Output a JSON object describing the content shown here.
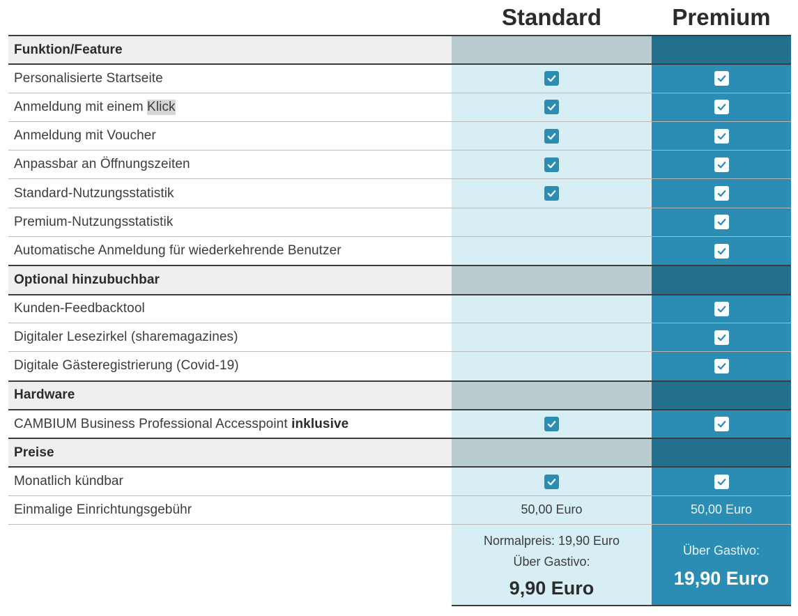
{
  "plans": {
    "standard": "Standard",
    "premium": "Premium"
  },
  "rows": [
    {
      "type": "section",
      "label": "Funktion/Feature"
    },
    {
      "type": "feature",
      "label": "Personalisierte Startseite",
      "std": true,
      "prem": true
    },
    {
      "type": "feature",
      "label_pre": "Anmeldung mit einem ",
      "label_highlight": "Klick",
      "std": true,
      "prem": true
    },
    {
      "type": "feature",
      "label": "Anmeldung mit Voucher",
      "std": true,
      "prem": true
    },
    {
      "type": "feature",
      "label": "Anpassbar an Öffnungszeiten",
      "std": true,
      "prem": true
    },
    {
      "type": "feature",
      "label": "Standard-Nutzungsstatistik",
      "std": true,
      "prem": true
    },
    {
      "type": "feature",
      "label": "Premium-Nutzungsstatistik",
      "std": false,
      "prem": true
    },
    {
      "type": "feature",
      "label": "Automatische Anmeldung für wiederkehrende Benutzer",
      "std": false,
      "prem": true
    },
    {
      "type": "section",
      "label": "Optional hinzubuchbar"
    },
    {
      "type": "feature",
      "label": "Kunden-Feedbacktool",
      "std": false,
      "prem": true
    },
    {
      "type": "feature",
      "label": "Digitaler Lesezirkel (sharemagazines)",
      "std": false,
      "prem": true
    },
    {
      "type": "feature",
      "label": "Digitale Gästeregistrierung (Covid-19)",
      "std": false,
      "prem": true
    },
    {
      "type": "section",
      "label": "Hardware"
    },
    {
      "type": "feature",
      "label_pre": "CAMBIUM Business Professional Accesspoint ",
      "label_bold": "inklusive",
      "std": true,
      "prem": true
    },
    {
      "type": "section",
      "label": "Preise"
    },
    {
      "type": "feature",
      "label": "Monatlich kündbar",
      "std": true,
      "prem": true
    },
    {
      "type": "value",
      "label": "Einmalige Einrichtungsgebühr",
      "std_text": "50,00 Euro",
      "prem_text": "50,00 Euro"
    }
  ],
  "pricing": {
    "standard_normal": "Normalpreis: 19,90 Euro",
    "standard_via": "Über Gastivo:",
    "standard_price": "9,90 Euro",
    "premium_via": "Über Gastivo:",
    "premium_price": "19,90 Euro"
  },
  "colors": {
    "standard_bg": "#d8eef5",
    "standard_section_bg": "#b8ccd0",
    "premium_bg": "#2b8db3",
    "premium_section_bg": "#22708e",
    "section_label_bg": "#efefef"
  },
  "icons": {
    "check": "checkbox-checked-icon"
  }
}
